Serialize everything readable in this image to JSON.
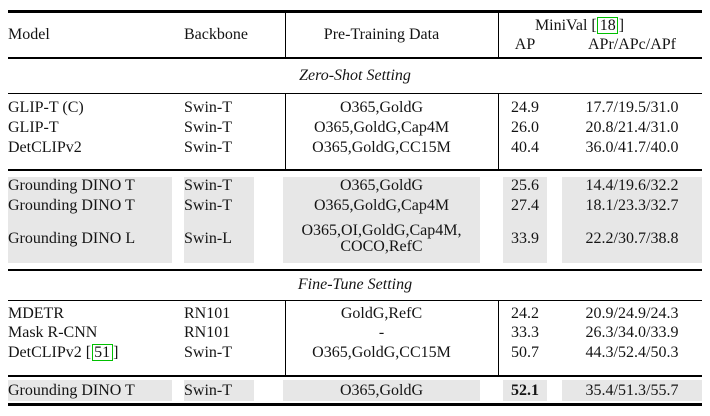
{
  "colors": {
    "highlight_gray": "#e7e7e7",
    "citation_green": "#00c000",
    "rule_black": "#000000",
    "text": "#141414"
  },
  "header": {
    "model": "Model",
    "backbone": "Backbone",
    "pretraining": "Pre-Training Data",
    "group_title": "MiniVal",
    "group_citation": "18",
    "ap": "AP",
    "aprcf": "APr/APc/APf"
  },
  "sections": [
    {
      "title": "Zero-Shot Setting",
      "groups": [
        {
          "highlight": false,
          "rows": [
            {
              "model": "GLIP-T (C)",
              "backbone": "Swin-T",
              "pretraining": [
                "O365,GoldG"
              ],
              "ap": "24.9",
              "aprcf": "17.7/19.5/31.0"
            },
            {
              "model": "GLIP-T",
              "backbone": "Swin-T",
              "pretraining": [
                "O365,GoldG,Cap4M"
              ],
              "ap": "26.0",
              "aprcf": "20.8/21.4/31.0"
            },
            {
              "model": "DetCLIPv2",
              "backbone": "Swin-T",
              "pretraining": [
                "O365,GoldG,CC15M"
              ],
              "ap": "40.4",
              "aprcf": "36.0/41.7/40.0"
            }
          ]
        },
        {
          "highlight": true,
          "rows": [
            {
              "model": "Grounding DINO T",
              "backbone": "Swin-T",
              "pretraining": [
                "O365,GoldG"
              ],
              "ap": "25.6",
              "aprcf": "14.4/19.6/32.2"
            },
            {
              "model": "Grounding DINO T",
              "backbone": "Swin-T",
              "pretraining": [
                "O365,GoldG,Cap4M"
              ],
              "ap": "27.4",
              "aprcf": "18.1/23.3/32.7"
            },
            {
              "model": "Grounding DINO L",
              "backbone": "Swin-L",
              "pretraining": [
                "O365,OI,GoldG,Cap4M,",
                "COCO,RefC"
              ],
              "ap": "33.9",
              "aprcf": "22.2/30.7/38.8"
            }
          ]
        }
      ]
    },
    {
      "title": "Fine-Tune Setting",
      "groups": [
        {
          "highlight": false,
          "rows": [
            {
              "model": "MDETR",
              "backbone": "RN101",
              "pretraining": [
                "GoldG,RefC"
              ],
              "ap": "24.2",
              "aprcf": "20.9/24.9/24.3"
            },
            {
              "model": "Mask R-CNN",
              "backbone": "RN101",
              "pretraining": [
                "-"
              ],
              "ap": "33.3",
              "aprcf": "26.3/34.0/33.9"
            },
            {
              "model": "DetCLIPv2",
              "model_citation": "51",
              "backbone": "Swin-T",
              "pretraining": [
                "O365,GoldG,CC15M"
              ],
              "ap": "50.7",
              "aprcf": "44.3/52.4/50.3"
            }
          ]
        },
        {
          "highlight": true,
          "rows": [
            {
              "model": "Grounding DINO T",
              "backbone": "Swin-T",
              "pretraining": [
                "O365,GoldG"
              ],
              "ap": "52.1",
              "ap_bold": true,
              "aprcf": "35.4/51.3/55.7"
            }
          ]
        }
      ]
    }
  ]
}
